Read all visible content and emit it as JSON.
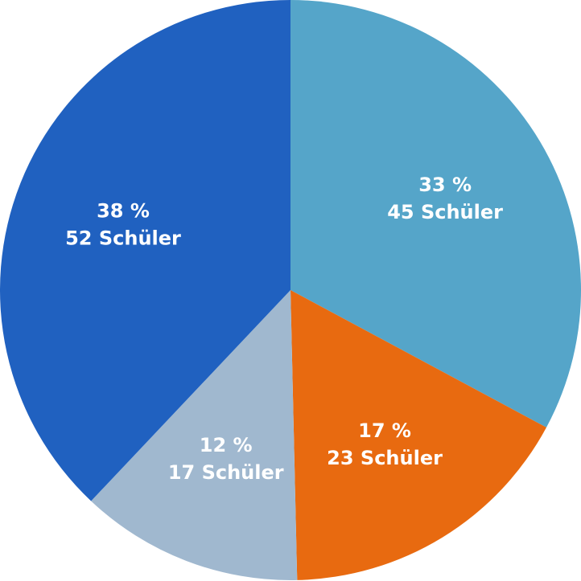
{
  "chart_data": {
    "type": "pie",
    "title": "",
    "slices": [
      {
        "percent_label": "33 %",
        "count_label": "45 Schüler",
        "value": 45,
        "color": "#55a5c9"
      },
      {
        "percent_label": "17 %",
        "count_label": "23 Schüler",
        "value": 23,
        "color": "#e86a10"
      },
      {
        "percent_label": "12 %",
        "count_label": "17 Schüler",
        "value": 17,
        "color": "#a0b8cf"
      },
      {
        "percent_label": "38 %",
        "count_label": "52 Schüler",
        "value": 52,
        "color": "#2061c0"
      }
    ]
  }
}
